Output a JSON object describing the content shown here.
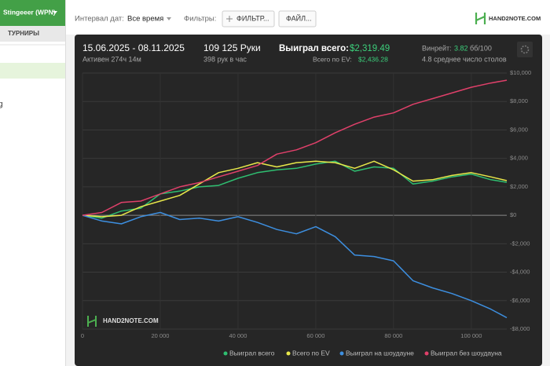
{
  "sidebar": {
    "account": "Stingeeer (WPN)",
    "tab": "ТУРНИРЫ",
    "item": "g"
  },
  "toolbar": {
    "date_label": "Интервал дат:",
    "date_value": "Все время",
    "filters_label": "Фильтры:",
    "filter_button": "ФИЛЬТР...",
    "file_button": "ФАЙЛ...",
    "logo": "HAND2NOTE.COM"
  },
  "stats": {
    "period": "15.06.2025 - 08.11.2025",
    "active": "Активен 274ч 14м",
    "hands": "109 125 Руки",
    "hands_per_hour": "398 рук в час",
    "won_label": "Выиграл всего:",
    "won_value": "$2,319.49",
    "ev_label": "Всего по EV:",
    "ev_value": "$2,436.28",
    "winrate_label": "Винрейт:",
    "winrate_value": "3.82",
    "winrate_unit": "бб/100",
    "tables": "4.8 среднее число столов"
  },
  "chart_data": {
    "type": "line",
    "watermark": "HAND2NOTE.COM",
    "x": [
      0,
      5000,
      10000,
      15000,
      20000,
      25000,
      30000,
      35000,
      40000,
      45000,
      50000,
      55000,
      60000,
      65000,
      70000,
      75000,
      80000,
      85000,
      90000,
      95000,
      100000,
      105000,
      109125
    ],
    "series": [
      {
        "name": "Выиграл всего",
        "color": "#2fbf71",
        "values": [
          0,
          -200,
          300,
          500,
          1500,
          1700,
          2000,
          2100,
          2600,
          3000,
          3200,
          3300,
          3600,
          3800,
          3100,
          3400,
          3300,
          2200,
          2400,
          2700,
          2900,
          2500,
          2319.49
        ]
      },
      {
        "name": "Всего по EV",
        "color": "#e8e84a",
        "values": [
          0,
          -100,
          0,
          600,
          1000,
          1400,
          2200,
          3000,
          3300,
          3700,
          3400,
          3700,
          3800,
          3700,
          3300,
          3800,
          3200,
          2400,
          2500,
          2800,
          3000,
          2700,
          2436.28
        ]
      },
      {
        "name": "Выиграл на шоудауне",
        "color": "#3d8fe0",
        "values": [
          0,
          -400,
          -600,
          -100,
          200,
          -300,
          -200,
          -400,
          -100,
          -500,
          -1000,
          -1300,
          -800,
          -1500,
          -2800,
          -2900,
          -3200,
          -4600,
          -5100,
          -5500,
          -6000,
          -6600,
          -7200
        ]
      },
      {
        "name": "Выиграл без шоудауна",
        "color": "#e0406a",
        "values": [
          0,
          200,
          900,
          1000,
          1500,
          2000,
          2300,
          2700,
          3100,
          3500,
          4300,
          4600,
          5100,
          5800,
          6400,
          6900,
          7200,
          7800,
          8200,
          8600,
          9000,
          9300,
          9500
        ]
      }
    ],
    "xlim": [
      0,
      109125
    ],
    "xticks": [
      0,
      {
        "value": 20000,
        "label": "20 000"
      },
      {
        "value": 40000,
        "label": "40 000"
      },
      {
        "value": 60000,
        "label": "60 000"
      },
      {
        "value": 80000,
        "label": "80 000"
      },
      {
        "value": 100000,
        "label": "100 000"
      }
    ],
    "ylim": [
      -8000,
      10000
    ],
    "yticks": [
      {
        "value": -8000,
        "label": "-$8,000"
      },
      {
        "value": -6000,
        "label": "-$6,000"
      },
      {
        "value": -4000,
        "label": "-$4,000"
      },
      {
        "value": -2000,
        "label": "-$2,000"
      },
      {
        "value": 0,
        "label": "$0"
      },
      {
        "value": 2000,
        "label": "$2,000"
      },
      {
        "value": 4000,
        "label": "$4,000"
      },
      {
        "value": 6000,
        "label": "$6,000"
      },
      {
        "value": 8000,
        "label": "$8,000"
      },
      {
        "value": 10000,
        "label": "$10,000"
      }
    ],
    "grid": true,
    "legend": "bottom"
  }
}
